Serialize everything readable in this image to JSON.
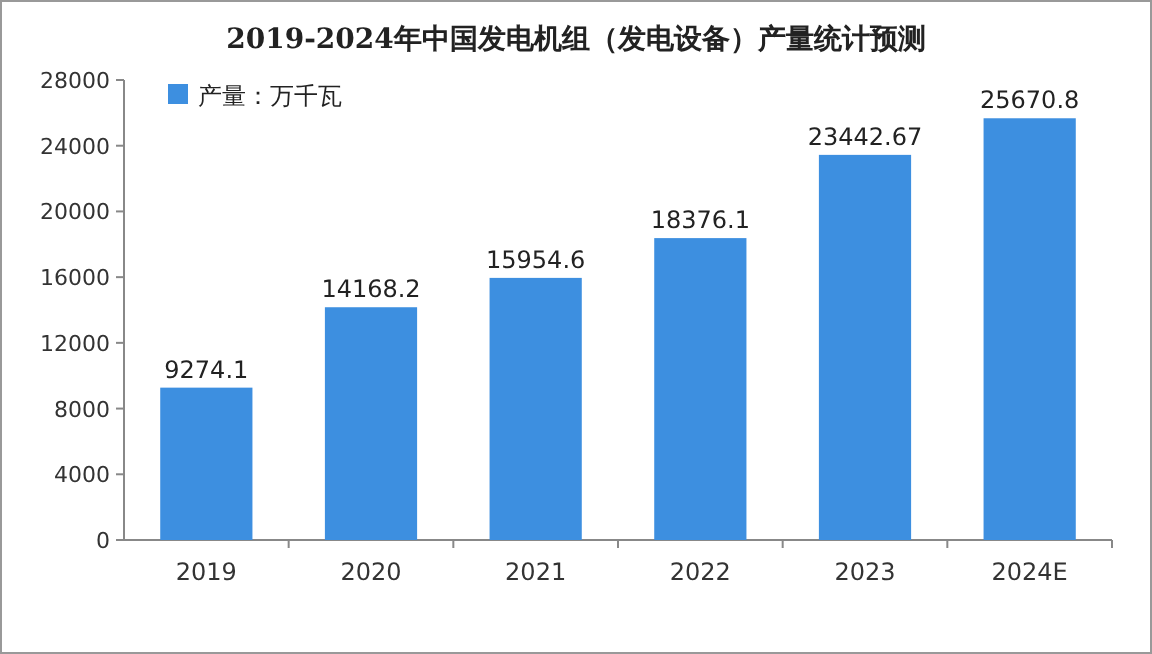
{
  "chart_data": {
    "type": "bar",
    "title": "2019-2024年中国发电机组（发电设备）产量统计预测",
    "categories": [
      "2019",
      "2020",
      "2021",
      "2022",
      "2023",
      "2024E"
    ],
    "series": [
      {
        "name": "产量：万千瓦",
        "color": "#3d8fe0",
        "values": [
          9274.1,
          14168.2,
          15954.6,
          18376.1,
          23442.67,
          25670.8
        ]
      }
    ],
    "ylim": [
      0,
      28000
    ],
    "yticks": [
      0,
      4000,
      8000,
      12000,
      16000,
      20000,
      24000,
      28000
    ],
    "data_labels": true,
    "legend": "top left",
    "grid": false
  }
}
